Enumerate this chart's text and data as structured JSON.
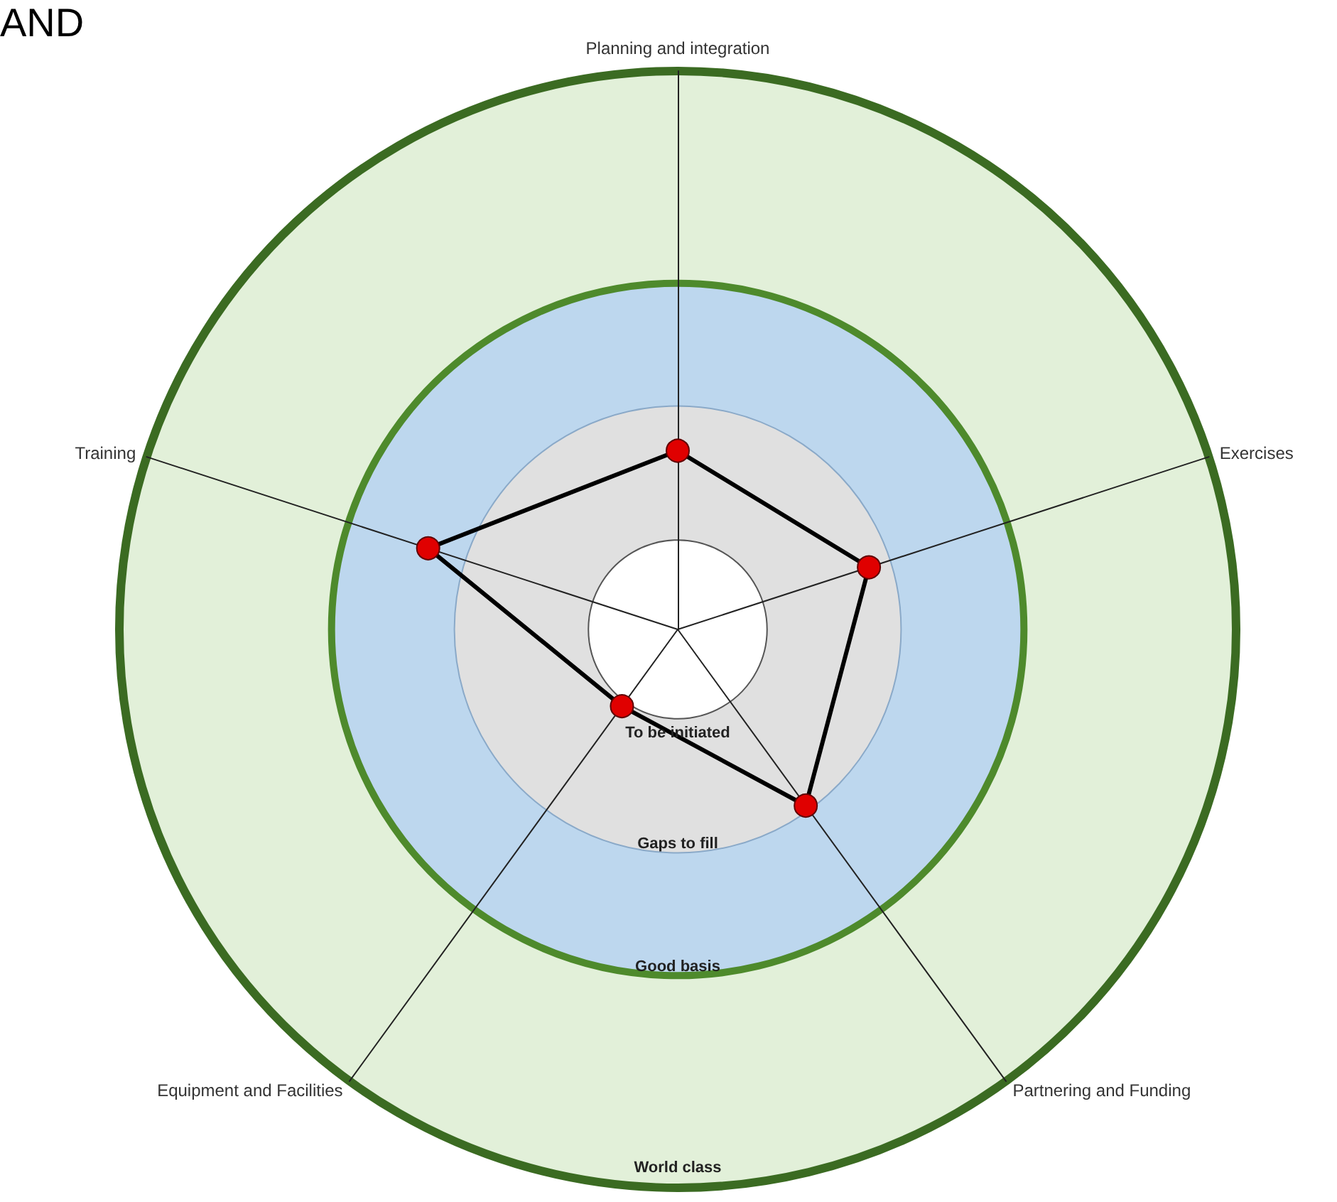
{
  "chart_data": {
    "type": "radar",
    "categories": [
      "Planning and integration",
      "Exercises",
      "Partnering and Funding",
      "Equipment and Facilities",
      "Training"
    ],
    "series": [
      {
        "color": "#000000",
        "values": [
          0.32,
          0.36,
          0.39,
          0.17,
          0.47
        ]
      }
    ],
    "marker": "circle",
    "ylim": [
      0,
      1
    ],
    "yticks": [
      {
        "value": 0.16,
        "label": "To be initiated"
      },
      {
        "value": 0.4,
        "label": "Gaps to fill"
      },
      {
        "value": 0.62,
        "label": "Good basis"
      },
      {
        "value": 1,
        "label": "World class"
      }
    ],
    "colors": [
      "#ffffff",
      "#e0e0e0",
      "#bdd7ee",
      "#e2f0d9"
    ],
    "annotations": [
      "AND"
    ]
  }
}
